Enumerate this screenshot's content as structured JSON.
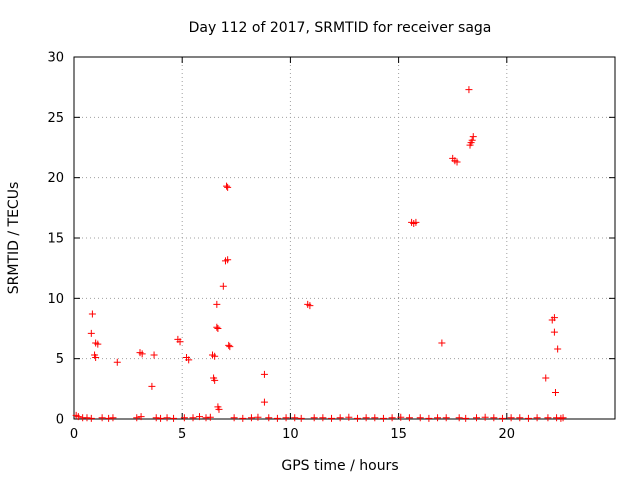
{
  "chart_data": {
    "type": "scatter",
    "title": "Day 112 of 2017, SRMTID for receiver saga",
    "xlabel": "GPS time / hours",
    "ylabel": "SRMTID / TECUs",
    "xlim": [
      0,
      25
    ],
    "ylim": [
      0,
      30
    ],
    "x_ticks": [
      0,
      5,
      10,
      15,
      20
    ],
    "y_ticks": [
      0,
      5,
      10,
      15,
      20,
      25,
      30
    ],
    "x_tick_labels": [
      "0",
      "5",
      "10",
      "15",
      "20"
    ],
    "y_tick_labels": [
      "0",
      "5",
      "10",
      "15",
      "20",
      "25",
      "30"
    ],
    "grid": true,
    "marker": "+",
    "color": "#ff0000",
    "points": [
      [
        0.1,
        0.3
      ],
      [
        0.2,
        0.2
      ],
      [
        0.4,
        0.1
      ],
      [
        0.6,
        0.1
      ],
      [
        0.8,
        0.05
      ],
      [
        0.85,
        8.7
      ],
      [
        0.8,
        7.1
      ],
      [
        1.0,
        6.3
      ],
      [
        1.1,
        6.2
      ],
      [
        0.95,
        5.3
      ],
      [
        1.0,
        5.1
      ],
      [
        1.3,
        0.1
      ],
      [
        1.6,
        0.05
      ],
      [
        1.8,
        0.1
      ],
      [
        2.0,
        4.7
      ],
      [
        2.9,
        0.1
      ],
      [
        3.1,
        0.2
      ],
      [
        3.05,
        5.5
      ],
      [
        3.15,
        5.4
      ],
      [
        3.6,
        2.7
      ],
      [
        3.7,
        5.3
      ],
      [
        3.8,
        0.1
      ],
      [
        4.0,
        0.05
      ],
      [
        4.3,
        0.1
      ],
      [
        4.6,
        0.05
      ],
      [
        4.8,
        6.6
      ],
      [
        4.9,
        6.4
      ],
      [
        5.2,
        5.1
      ],
      [
        5.3,
        4.9
      ],
      [
        5.1,
        0.1
      ],
      [
        5.5,
        0.1
      ],
      [
        5.8,
        0.2
      ],
      [
        6.1,
        0.1
      ],
      [
        6.3,
        0.15
      ],
      [
        6.4,
        5.3
      ],
      [
        6.5,
        5.2
      ],
      [
        6.45,
        3.4
      ],
      [
        6.5,
        3.2
      ],
      [
        6.6,
        7.6
      ],
      [
        6.65,
        7.5
      ],
      [
        6.6,
        9.5
      ],
      [
        6.65,
        1.0
      ],
      [
        6.7,
        0.8
      ],
      [
        6.9,
        11.0
      ],
      [
        7.0,
        13.1
      ],
      [
        7.1,
        13.2
      ],
      [
        7.05,
        19.3
      ],
      [
        7.1,
        19.2
      ],
      [
        7.15,
        6.1
      ],
      [
        7.2,
        6.0
      ],
      [
        7.4,
        0.1
      ],
      [
        7.8,
        0.05
      ],
      [
        8.2,
        0.1
      ],
      [
        8.5,
        0.15
      ],
      [
        8.8,
        3.7
      ],
      [
        8.8,
        1.4
      ],
      [
        9.0,
        0.1
      ],
      [
        9.4,
        0.05
      ],
      [
        9.8,
        0.1
      ],
      [
        10.2,
        0.1
      ],
      [
        10.5,
        0.05
      ],
      [
        10.8,
        9.5
      ],
      [
        10.9,
        9.4
      ],
      [
        11.1,
        0.1
      ],
      [
        11.5,
        0.1
      ],
      [
        11.9,
        0.05
      ],
      [
        12.3,
        0.1
      ],
      [
        12.7,
        0.15
      ],
      [
        13.1,
        0.05
      ],
      [
        13.5,
        0.1
      ],
      [
        13.9,
        0.1
      ],
      [
        14.3,
        0.05
      ],
      [
        14.7,
        0.1
      ],
      [
        15.1,
        0.15
      ],
      [
        15.5,
        0.1
      ],
      [
        15.6,
        16.3
      ],
      [
        15.7,
        16.2
      ],
      [
        15.8,
        16.3
      ],
      [
        16.0,
        0.1
      ],
      [
        16.4,
        0.05
      ],
      [
        16.8,
        0.1
      ],
      [
        17.0,
        6.3
      ],
      [
        17.2,
        0.1
      ],
      [
        17.5,
        21.6
      ],
      [
        17.6,
        21.4
      ],
      [
        17.7,
        21.3
      ],
      [
        17.8,
        0.1
      ],
      [
        18.1,
        0.05
      ],
      [
        18.25,
        27.3
      ],
      [
        18.3,
        22.7
      ],
      [
        18.35,
        22.9
      ],
      [
        18.4,
        23.1
      ],
      [
        18.45,
        23.4
      ],
      [
        18.6,
        0.1
      ],
      [
        19.0,
        0.15
      ],
      [
        19.4,
        0.1
      ],
      [
        19.8,
        0.05
      ],
      [
        20.2,
        0.1
      ],
      [
        20.6,
        0.1
      ],
      [
        21.0,
        0.05
      ],
      [
        21.4,
        0.1
      ],
      [
        21.8,
        3.4
      ],
      [
        21.9,
        0.1
      ],
      [
        22.1,
        8.2
      ],
      [
        22.2,
        8.4
      ],
      [
        22.2,
        7.2
      ],
      [
        22.35,
        5.8
      ],
      [
        22.25,
        2.2
      ],
      [
        22.3,
        0.1
      ],
      [
        22.5,
        0.05
      ],
      [
        22.6,
        0.1
      ]
    ]
  }
}
